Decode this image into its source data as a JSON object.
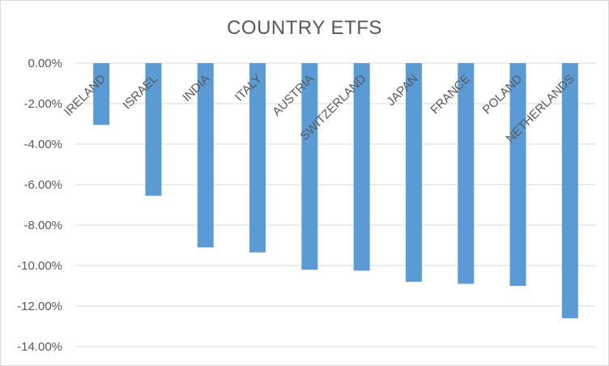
{
  "chart_data": {
    "type": "bar",
    "title": "COUNTRY ETFS",
    "categories": [
      "IRELAND",
      "ISRAEL",
      "INDIA",
      "ITALY",
      "AUSTRIA",
      "SWITZERLAND",
      "JAPAN",
      "FRANCE",
      "POLAND",
      "NETHERLANDS"
    ],
    "values": [
      -3.05,
      -6.55,
      -9.1,
      -9.35,
      -10.2,
      -10.25,
      -10.8,
      -10.9,
      -11.0,
      -12.6
    ],
    "value_format": "percent_2dp",
    "ylim": [
      -14,
      0
    ],
    "yticks": [
      0,
      -2,
      -4,
      -6,
      -8,
      -10,
      -12,
      -14
    ],
    "ytick_labels": [
      "0.00%",
      "-2.00%",
      "-4.00%",
      "-6.00%",
      "-8.00%",
      "-10.00%",
      "-12.00%",
      "-14.00%"
    ],
    "xlabel": "",
    "ylabel": "",
    "grid": true,
    "legend": "none",
    "bar_color": "#5b9bd5",
    "grid_color": "#d9d9d9",
    "text_color": "#595959"
  }
}
